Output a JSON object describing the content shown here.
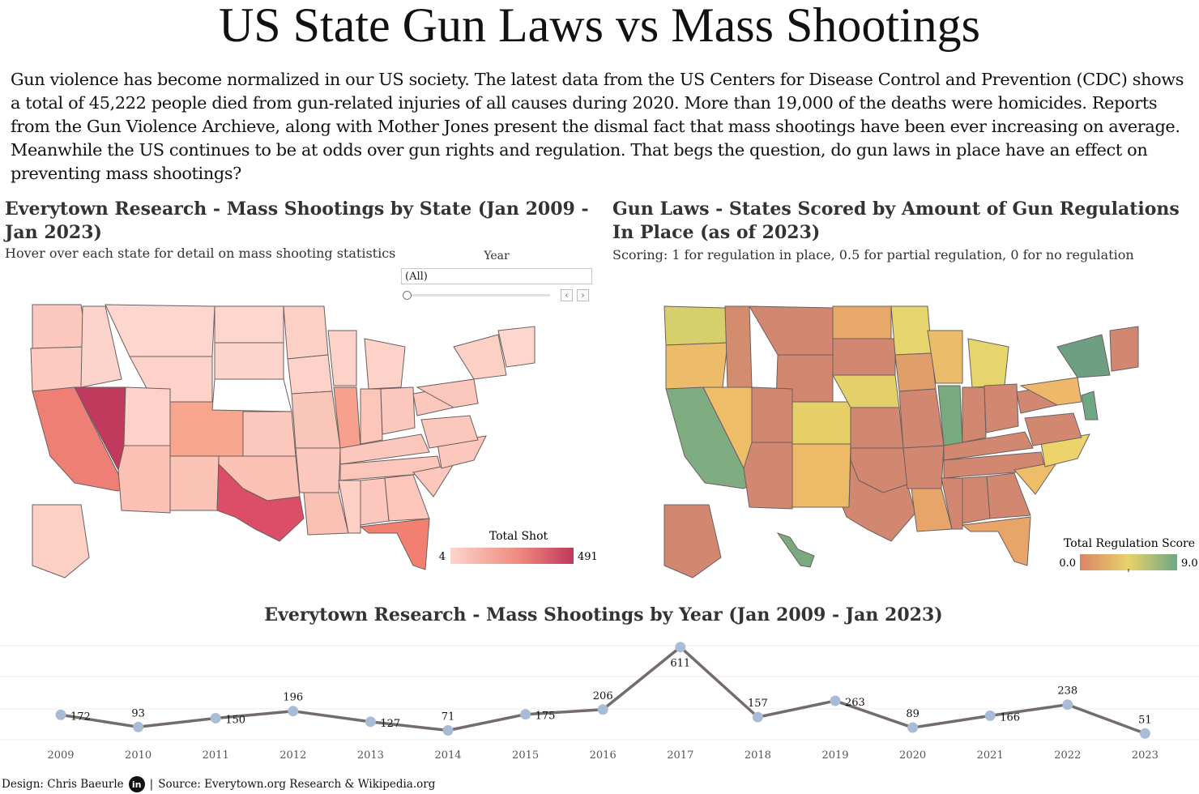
{
  "page": {
    "title": "US State Gun Laws vs Mass Shootings",
    "intro": "Gun violence has become normalized in our US society. The latest data from the US Centers for Disease Control and Prevention (CDC) shows a total of 45,222 people died from gun-related injuries of all causes during 2020. More than 19,000 of the deaths were homicides. Reports from the Gun Violence Archieve, along with Mother Jones present the dismal fact that mass shootings have been ever increasing on average. Meanwhile the US continues to be at odds over gun rights and regulation. That begs the question, do gun laws in place have an effect on preventing mass shootings?"
  },
  "left_map": {
    "title": "Everytown Research - Mass Shootings by State (Jan 2009 - Jan 2023)",
    "subtitle": "Hover over each state for detail on mass shooting statistics",
    "filter_label": "Year",
    "filter_value": "(All)",
    "prev_icon": "chevron-left-icon",
    "next_icon": "chevron-right-icon",
    "legend_title": "Total Shot",
    "legend_min": "4",
    "legend_max": "491",
    "colors": {
      "low": "#fcd5cd",
      "mid": "#f08a7f",
      "high": "#c0395b"
    }
  },
  "right_map": {
    "title": "Gun Laws - States Scored by Amount of Gun Regulations In Place (as of 2023)",
    "subtitle": "Scoring: 1 for regulation in place, 0.5 for partial regulation, 0 for no regulation",
    "legend_title": "Total Regulation Score",
    "legend_min": "0.0",
    "legend_max": "9.0",
    "colors": {
      "low": "#d98568",
      "mid": "#e8d26a",
      "high": "#6fa784"
    }
  },
  "line_chart": {
    "title": "Everytown Research - Mass Shootings by Year (Jan 2009 - Jan 2023)"
  },
  "chart_data": {
    "type": "line",
    "title": "Everytown Research - Mass Shootings by Year (Jan 2009 - Jan 2023)",
    "x": [
      "2009",
      "2010",
      "2011",
      "2012",
      "2013",
      "2014",
      "2015",
      "2016",
      "2017",
      "2018",
      "2019",
      "2020",
      "2021",
      "2022",
      "2023"
    ],
    "series": [
      {
        "values": [
          172,
          93,
          150,
          196,
          127,
          71,
          175,
          206,
          611,
          157,
          263,
          89,
          166,
          238,
          51
        ]
      }
    ],
    "ylim": [
      0,
      620
    ],
    "grid": true,
    "line_color": "#746c6a",
    "marker_color": "#a9bcd6"
  },
  "footer": {
    "design": "Design: Chris Baeurle",
    "icon": "linkedin-icon",
    "icon_text": "in",
    "separator": "|",
    "source": "Source: Everytown.org Research & Wikipedia.org"
  }
}
